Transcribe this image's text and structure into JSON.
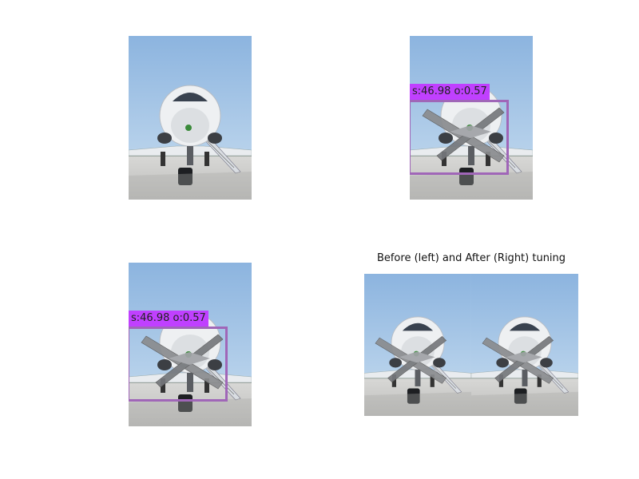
{
  "colors": {
    "sky_top": "#8fb6e0",
    "sky_bottom": "#c7dcef",
    "tarmac": "#cfcfcf",
    "label_bg": "#c040ff",
    "bbox_stroke": "#a066b8"
  },
  "panels": {
    "top_left": {
      "image": "airplane-front-icon"
    },
    "top_right": {
      "image": "airplane-front-icon",
      "detection_label": "s:46.98 o:0.57"
    },
    "bottom_left": {
      "image": "airplane-front-icon",
      "detection_label": "s:46.98 o:0.57"
    },
    "bottom_right": {
      "title": "Before (left) and After (Right) tuning"
    }
  }
}
